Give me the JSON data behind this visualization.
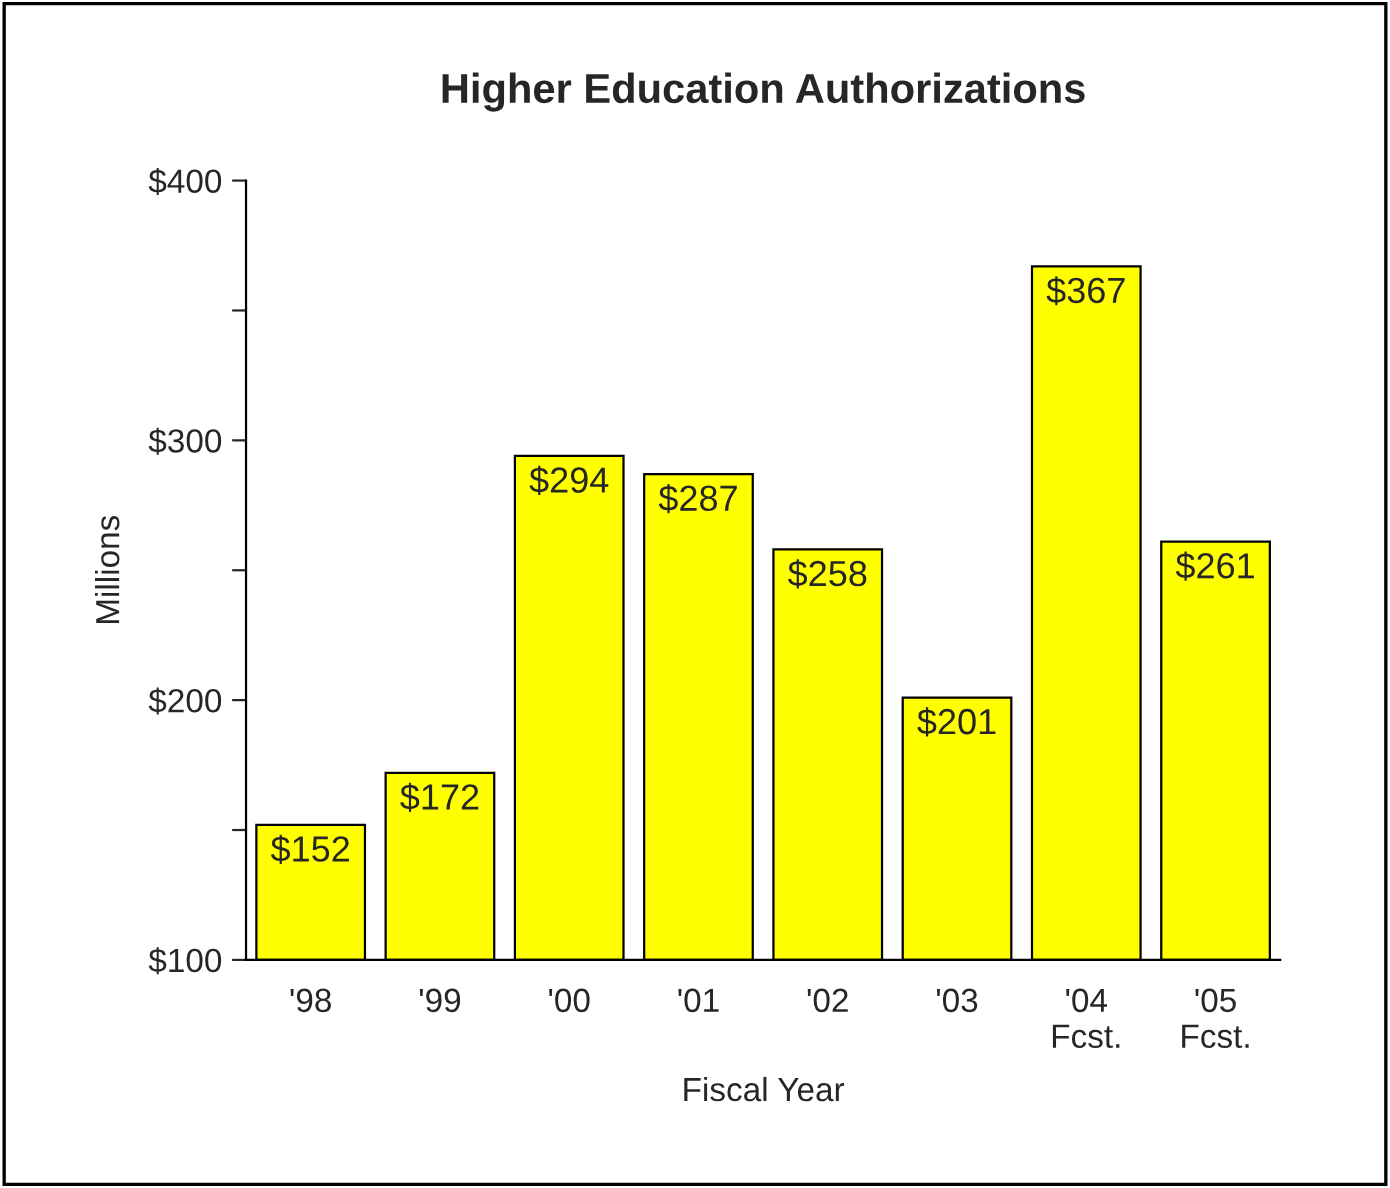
{
  "chart_data": {
    "type": "bar",
    "title": "Higher Education Authorizations",
    "xlabel": "Fiscal Year",
    "ylabel": "Millions",
    "categories": [
      "'98",
      "'99",
      "'00",
      "'01",
      "'02",
      "'03",
      "'04\nFcst.",
      "'05\nFcst."
    ],
    "values": [
      152,
      172,
      294,
      287,
      258,
      201,
      367,
      261
    ],
    "value_labels": [
      "$152",
      "$172",
      "$294",
      "$287",
      "$258",
      "$201",
      "$367",
      "$261"
    ],
    "color": "#ffff00",
    "ylim": [
      100,
      400
    ],
    "yticks": [
      {
        "value": 100,
        "label": "$100"
      },
      {
        "value": 150,
        "label": null
      },
      {
        "value": 200,
        "label": "$200"
      },
      {
        "value": 250,
        "label": null
      },
      {
        "value": 300,
        "label": "$300"
      },
      {
        "value": 350,
        "label": null
      },
      {
        "value": 400,
        "label": "$400"
      }
    ],
    "grid": false,
    "legend": false
  }
}
